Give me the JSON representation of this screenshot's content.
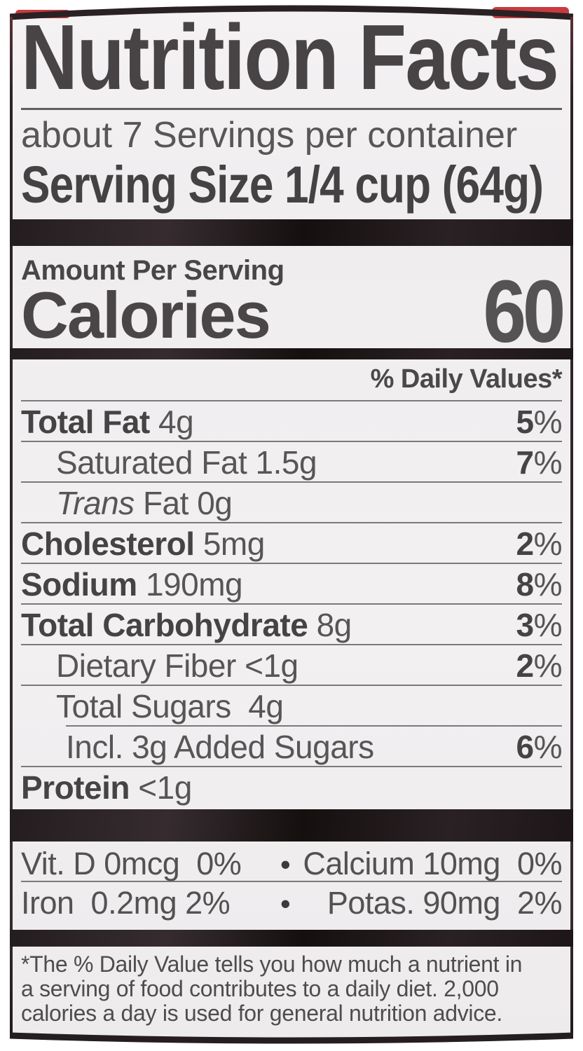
{
  "colors": {
    "page_bg": "#ffffff",
    "panel_bg": "#f1eff0",
    "ink_bold": "#464344",
    "ink_regular": "#585556",
    "section_bar": "#221b1e",
    "thin_rule": "#7b797a",
    "red_packaging": "#c93a40",
    "label_edge": "#342930"
  },
  "header": {
    "title": "Nutrition Facts",
    "servings_per_container": "about 7 Servings per container",
    "serving_size_label": "Serving Size",
    "serving_size_value": "1/4 cup (64g)"
  },
  "calories": {
    "section_label": "Amount Per Serving",
    "label": "Calories",
    "value": "60"
  },
  "daily_value_header": "% Daily Values*",
  "percent_sign": "%",
  "nutrients": [
    {
      "name": "Total Fat",
      "amount": "4g",
      "dv": "5",
      "bold": true,
      "indent": 0
    },
    {
      "name": "Saturated Fat",
      "amount": "1.5g",
      "dv": "7",
      "indent": 1
    },
    {
      "name": "Trans",
      "amount": "Fat 0g",
      "italic": true,
      "indent": 1
    },
    {
      "name": "Cholesterol",
      "amount": "5mg",
      "dv": "2",
      "bold": true,
      "indent": 0
    },
    {
      "name": "Sodium",
      "amount": "190mg",
      "dv": "8",
      "bold": true,
      "indent": 0
    },
    {
      "name": "Total Carbohydrate",
      "amount": "8g",
      "dv": "3",
      "bold": true,
      "indent": 0
    },
    {
      "name": "Dietary Fiber",
      "amount": "<1g",
      "dv": "2",
      "indent": 1
    },
    {
      "name": "Total Sugars",
      "amount": " 4g",
      "indent": 1
    },
    {
      "name": "Incl. 3g Added Sugars",
      "amount": "",
      "dv": "6",
      "indent": 2,
      "indented_rule": true
    },
    {
      "name": "Protein",
      "amount": "<1g",
      "bold": true,
      "indent": 0
    }
  ],
  "micronutrients": {
    "rows": [
      {
        "left": "Vit. D 0mcg  0%",
        "bullet": "•",
        "right": "Calcium 10mg  0%"
      },
      {
        "left": "Iron  0.2mg 2%",
        "bullet": "•",
        "right": "Potas. 90mg  2%"
      }
    ]
  },
  "footnote_lines": [
    "*The % Daily Value tells you how much a nutrient in",
    "a serving of food contributes to a daily diet. 2,000",
    "calories a day is used for general nutrition advice."
  ]
}
